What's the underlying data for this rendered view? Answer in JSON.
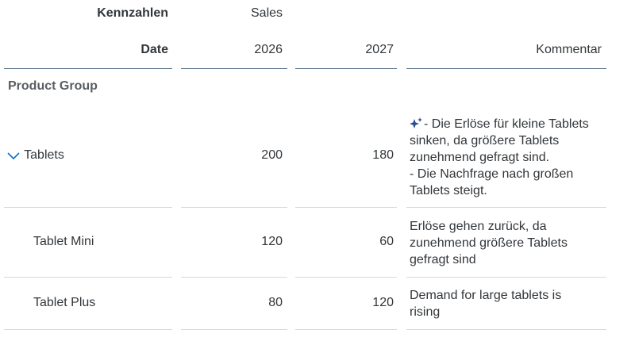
{
  "header": {
    "measures_label": "Kennzahlen",
    "measures_value": "Sales",
    "date_label": "Date",
    "years": [
      "2026",
      "2027"
    ],
    "comment_header": "Kommentar"
  },
  "dimension_label": "Product Group",
  "rows": [
    {
      "name": "Tablets",
      "expanded": true,
      "values": [
        "200",
        "180"
      ],
      "comment_lines": [
        "- Die Erlöse für kleine Tablets",
        "sinken, da größere Tablets",
        "zunehmend gefragt sind.",
        "- Die Nachfrage nach großen",
        "Tablets steigt."
      ],
      "ai_icon": "ai-sparkle-icon"
    },
    {
      "name": "Tablet Mini",
      "values": [
        "120",
        "60"
      ],
      "comment_lines": [
        "Erlöse gehen zurück, da",
        "zunehmend größere Tablets",
        "gefragt sind"
      ]
    },
    {
      "name": "Tablet Plus",
      "values": [
        "80",
        "120"
      ],
      "comment_lines": [
        "Demand for large tablets is",
        "rising"
      ]
    }
  ],
  "colors": {
    "text": "#32363a",
    "accent": "#0a6ed1",
    "header_rule": "#5b738b",
    "row_rule": "#d9d9d9",
    "ai_icon": "#2a4e8c"
  }
}
